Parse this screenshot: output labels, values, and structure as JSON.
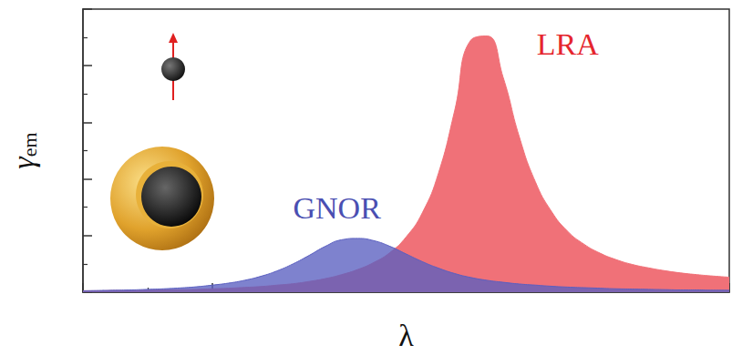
{
  "chart_data": {
    "type": "area",
    "x_label": "λ",
    "y_label": "γem",
    "xlim": [
      0,
      10
    ],
    "ylim": [
      0,
      10
    ],
    "xticks": [
      0,
      2,
      4,
      6,
      8,
      10
    ],
    "yticks": [
      0,
      2,
      4,
      6,
      8,
      10
    ],
    "tick_labels": false,
    "grid": false,
    "x": [
      0,
      0.25,
      0.5,
      0.75,
      1,
      1.25,
      1.5,
      1.75,
      2,
      2.25,
      2.5,
      2.75,
      3,
      3.25,
      3.5,
      3.75,
      4,
      4.25,
      4.5,
      4.75,
      5,
      5.25,
      5.5,
      5.75,
      6,
      6.25,
      6.5,
      6.75,
      7,
      7.25,
      7.5,
      7.75,
      8,
      8.25,
      8.5,
      8.75,
      9,
      9.25,
      9.5,
      9.75,
      10
    ],
    "series": [
      {
        "name": "LRA",
        "color": "#f07178",
        "values": [
          0.05,
          0.05,
          0.06,
          0.06,
          0.07,
          0.08,
          0.09,
          0.1,
          0.12,
          0.14,
          0.17,
          0.2,
          0.25,
          0.3,
          0.38,
          0.48,
          0.62,
          0.8,
          1.05,
          1.4,
          1.95,
          2.8,
          4.2,
          6.4,
          8.9,
          9.05,
          7.6,
          5.5,
          3.9,
          2.85,
          2.15,
          1.7,
          1.38,
          1.15,
          0.98,
          0.86,
          0.76,
          0.68,
          0.62,
          0.57,
          0.53
        ]
      },
      {
        "name": "GNOR",
        "color": "#5a5fc0",
        "values": [
          0.05,
          0.06,
          0.07,
          0.08,
          0.1,
          0.12,
          0.15,
          0.19,
          0.25,
          0.32,
          0.42,
          0.56,
          0.75,
          1.0,
          1.3,
          1.62,
          1.85,
          1.9,
          1.82,
          1.62,
          1.35,
          1.08,
          0.85,
          0.66,
          0.52,
          0.42,
          0.35,
          0.29,
          0.25,
          0.21,
          0.18,
          0.16,
          0.14,
          0.12,
          0.11,
          0.1,
          0.09,
          0.08,
          0.08,
          0.07,
          0.07
        ]
      }
    ],
    "annotations": [
      {
        "text": "LRA",
        "x": 7.5,
        "y": 8.75,
        "color": "#e5262e"
      },
      {
        "text": "GNOR",
        "x": 3.93,
        "y": 2.97,
        "color": "#4a4fb2"
      }
    ]
  }
}
